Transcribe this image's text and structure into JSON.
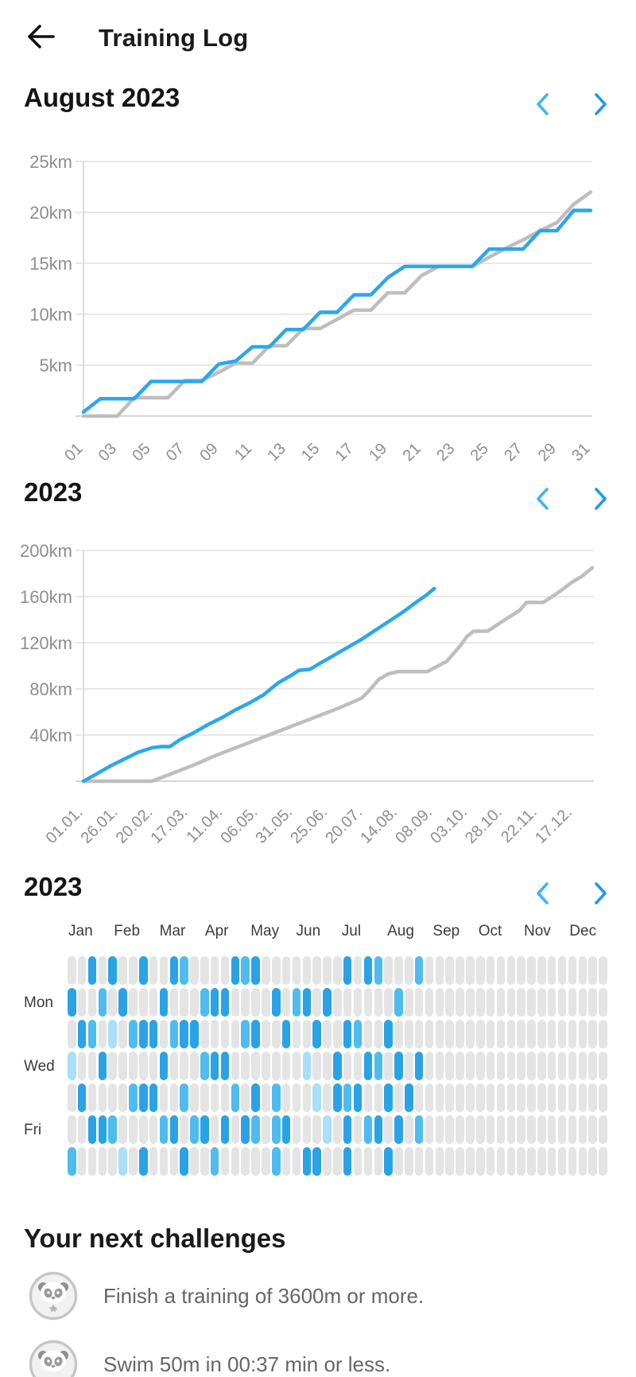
{
  "header": {
    "title": "Training Log",
    "back_icon": "arrow-left-icon"
  },
  "colors": {
    "accent_blue": "#2BA7EC",
    "line_gray": "#BEBEBE",
    "grid": "#E8E8E8",
    "axis_text": "#8E8E8E",
    "heat_levels": [
      "#E4E4E4",
      "#A9DFF8",
      "#4FBCF0",
      "#2AA2E6"
    ]
  },
  "sections": {
    "month": {
      "title": "August 2023",
      "prev_icon": "chevron-left-icon",
      "next_icon": "chevron-right-icon"
    },
    "year": {
      "title": "2023",
      "prev_icon": "chevron-left-icon",
      "next_icon": "chevron-right-icon"
    },
    "calendar": {
      "title": "2023",
      "prev_icon": "chevron-left-icon",
      "next_icon": "chevron-right-icon"
    }
  },
  "chart_data": [
    {
      "type": "line",
      "name": "august-cumulative-distance",
      "title": "August 2023",
      "ylabel": "km",
      "ylim": [
        0,
        25
      ],
      "ytick_labels": [
        "5km",
        "10km",
        "15km",
        "20km",
        "25km"
      ],
      "ytick_values": [
        5,
        10,
        15,
        20,
        25
      ],
      "xtick_labels": [
        "01",
        "03",
        "05",
        "07",
        "09",
        "11",
        "13",
        "15",
        "17",
        "19",
        "21",
        "23",
        "25",
        "27",
        "29",
        "31"
      ],
      "xtick_days": [
        1,
        3,
        5,
        7,
        9,
        11,
        13,
        15,
        17,
        19,
        21,
        23,
        25,
        27,
        29,
        31
      ],
      "x_days": 31,
      "grid": true,
      "series": [
        {
          "name": "previous-period",
          "color": "#BEBEBE",
          "values": [
            0,
            0,
            0,
            1.8,
            1.8,
            1.8,
            3.5,
            3.5,
            4.3,
            5.2,
            5.2,
            6.9,
            6.9,
            8.6,
            8.6,
            9.5,
            10.4,
            10.4,
            12.1,
            12.1,
            13.8,
            14.7,
            14.7,
            14.7,
            15.6,
            16.5,
            17.3,
            18.2,
            19.0,
            20.8,
            22.0
          ]
        },
        {
          "name": "current-period",
          "color": "#2BA7EC",
          "values": [
            0.4,
            1.7,
            1.7,
            1.7,
            3.4,
            3.4,
            3.4,
            3.4,
            5.1,
            5.4,
            6.8,
            6.8,
            8.5,
            8.5,
            10.2,
            10.2,
            11.9,
            11.9,
            13.6,
            14.7,
            14.7,
            14.7,
            14.7,
            14.7,
            16.4,
            16.4,
            16.4,
            18.2,
            18.2,
            20.2,
            20.2
          ]
        }
      ]
    },
    {
      "type": "line",
      "name": "year-cumulative-distance",
      "title": "2023",
      "ylabel": "km",
      "ylim": [
        0,
        200
      ],
      "ytick_labels": [
        "40km",
        "80km",
        "120km",
        "160km",
        "200km"
      ],
      "ytick_values": [
        40,
        80,
        120,
        160,
        200
      ],
      "xtick_labels": [
        "01.01.",
        "26.01.",
        "20.02.",
        "17.03.",
        "11.04.",
        "06.05.",
        "31.05.",
        "25.06.",
        "20.07.",
        "14.08.",
        "08.09.",
        "03.10.",
        "28.10.",
        "22.11.",
        "17.12."
      ],
      "xtick_days": [
        1,
        26,
        51,
        76,
        101,
        126,
        151,
        176,
        201,
        226,
        251,
        276,
        301,
        326,
        351
      ],
      "x_days": 365,
      "grid": true,
      "series": [
        {
          "name": "previous-year",
          "color": "#BEBEBE",
          "x": [
            1,
            50,
            65,
            80,
            95,
            110,
            125,
            140,
            155,
            170,
            185,
            200,
            205,
            212,
            219,
            226,
            247,
            261,
            271,
            275,
            280,
            290,
            300,
            313,
            318,
            330,
            340,
            350,
            358,
            365
          ],
          "y": [
            0,
            0,
            7,
            14,
            22,
            29,
            36,
            43,
            50,
            57,
            64,
            72,
            78,
            88,
            93,
            95,
            95,
            104,
            118,
            125,
            130,
            130,
            138,
            148,
            155,
            155,
            163,
            172,
            178,
            185
          ]
        },
        {
          "name": "current-year",
          "color": "#2BA7EC",
          "x": [
            1,
            10,
            20,
            30,
            40,
            50,
            57,
            63,
            70,
            80,
            90,
            100,
            110,
            120,
            130,
            135,
            140,
            150,
            155,
            163,
            170,
            180,
            190,
            200,
            210,
            220,
            230,
            240,
            246,
            252
          ],
          "y": [
            0,
            6,
            13,
            19,
            25,
            29,
            30,
            30,
            36,
            42,
            49,
            55,
            62,
            68,
            75,
            80,
            85,
            92,
            96,
            97,
            102,
            109,
            116,
            123,
            131,
            139,
            147,
            156,
            161,
            167
          ]
        }
      ]
    },
    {
      "type": "heatmap",
      "name": "training-calendar",
      "title": "2023",
      "months": [
        "Jan",
        "Feb",
        "Mar",
        "Apr",
        "May",
        "Jun",
        "Jul",
        "Aug",
        "Sep",
        "Oct",
        "Nov",
        "Dec"
      ],
      "weekday_labels": [
        "",
        "Mon",
        "",
        "Wed",
        "",
        "Fri",
        ""
      ],
      "weeks": 53,
      "legend": "intensity 0=none 1=light 2=medium 3=high",
      "rows": [
        "00303003003200003230000000030320002000000000000000000",
        "30020300030002330000302303000000200000000000000000000",
        "03201023302330000230030030032003000000000000000000000",
        "10030000030002330000000100300320303000000000000000000",
        "03000023300200002030200010323003030000000000000000000",
        "00332000023023030320230001030230302000000000000000000",
        "20000103000300200000200330030003000000000000000000000"
      ]
    }
  ],
  "challenges": {
    "title": "Your next challenges",
    "items": [
      {
        "icon": "panda-badge-icon",
        "text": "Finish a training of 3600m or more."
      },
      {
        "icon": "panda-badge-icon",
        "text": "Swim 50m in 00:37 min or less."
      }
    ]
  }
}
